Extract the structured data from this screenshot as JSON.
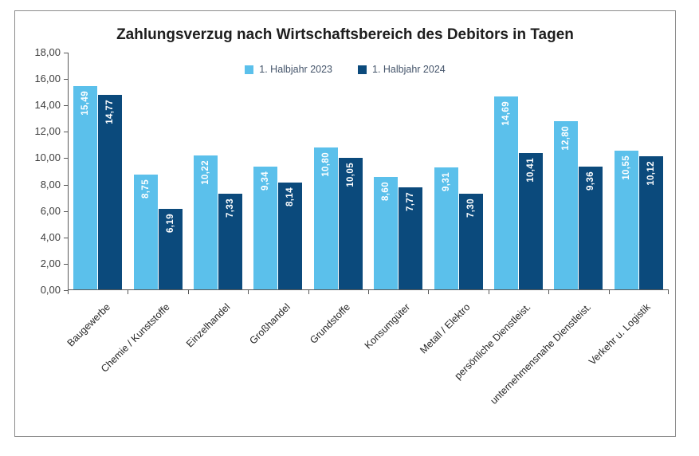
{
  "chart_data": {
    "type": "bar",
    "title": "Zahlungsverzug nach Wirtschaftsbereich des Debitors in Tagen",
    "categories": [
      "Baugewerbe",
      "Chemie / Kunststoffe",
      "Einzelhandel",
      "Großhandel",
      "Grundstoffe",
      "Konsumgüter",
      "Metall / Elektro",
      "persönliche Dienstleist.",
      "unternehmensnahe Dienstleist.",
      "Verkehr u. Logistik"
    ],
    "series": [
      {
        "name": "1. Halbjahr 2023",
        "color": "#5bc0eb",
        "values": [
          15.49,
          8.75,
          10.22,
          9.34,
          10.8,
          8.6,
          9.31,
          14.69,
          12.8,
          10.55
        ],
        "value_labels": [
          "15,49",
          "8,75",
          "10,22",
          "9,34",
          "10,80",
          "8,60",
          "9,31",
          "14,69",
          "12,80",
          "10,55"
        ]
      },
      {
        "name": "1. Halbjahr 2024",
        "color": "#0b4a7c",
        "values": [
          14.77,
          6.19,
          7.33,
          8.14,
          10.05,
          7.77,
          7.3,
          10.41,
          9.36,
          10.12
        ],
        "value_labels": [
          "14,77",
          "6,19",
          "7,33",
          "8,14",
          "10,05",
          "7,77",
          "7,30",
          "10,41",
          "9,36",
          "10,12"
        ]
      }
    ],
    "ylim": [
      0,
      18
    ],
    "ytick_step": 2,
    "ytick_labels": [
      "18,00",
      "16,00",
      "14,00",
      "12,00",
      "10,00",
      "8,00",
      "6,00",
      "4,00",
      "2,00",
      "0,00"
    ],
    "grid": false,
    "legend_position": "top-center",
    "value_labels_visible": true
  },
  "styles": {
    "series_2023_color": "#5bc0eb",
    "series_2024_color": "#0b4a7c",
    "axis_color": "#595959",
    "title_color": "#1e1e1e",
    "legend_text_color": "#44546a",
    "border_color": "#8c8c8c"
  }
}
